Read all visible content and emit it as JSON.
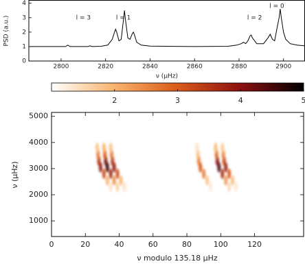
{
  "chart_data": [
    {
      "type": "line",
      "ylabel": "PSD (a.u.)",
      "xlabel": "ν (μHz)",
      "xlim": [
        2785.5,
        2909.5
      ],
      "ylim": [
        0,
        4.2
      ],
      "xticks": [
        2800,
        2820,
        2840,
        2860,
        2880,
        2900
      ],
      "yticks": [
        0,
        1,
        2,
        3,
        4
      ],
      "color": "#000000",
      "x": [
        2786,
        2795,
        2802,
        2803,
        2804,
        2812,
        2813,
        2814,
        2818,
        2821,
        2823,
        2824,
        2824.5,
        2825,
        2826,
        2827,
        2828,
        2828.5,
        2829,
        2830,
        2831,
        2832,
        2832.5,
        2833,
        2834,
        2836,
        2840,
        2860,
        2875,
        2879,
        2881,
        2882,
        2883,
        2884,
        2885,
        2885.5,
        2886,
        2888,
        2891,
        2893,
        2894,
        2895,
        2896,
        2897,
        2898,
        2898.5,
        2899,
        2900,
        2901,
        2903,
        2906,
        2909.5
      ],
      "values": [
        1.0,
        1.0,
        1.0,
        1.1,
        1.0,
        1.0,
        1.05,
        1.0,
        1.02,
        1.1,
        1.5,
        2.0,
        2.2,
        2.0,
        1.4,
        1.5,
        2.8,
        3.5,
        2.8,
        1.6,
        1.5,
        1.9,
        2.0,
        1.8,
        1.3,
        1.1,
        1.03,
        1.0,
        1.02,
        1.1,
        1.2,
        1.3,
        1.2,
        1.4,
        1.75,
        1.8,
        1.6,
        1.2,
        1.2,
        1.6,
        1.85,
        1.5,
        1.4,
        2.2,
        3.0,
        3.6,
        3.0,
        2.0,
        1.5,
        1.2,
        1.1,
        1.05
      ],
      "annotations": [
        {
          "text": "l = 3",
          "x": 2810,
          "y": 3.0
        },
        {
          "text": "l = 1",
          "x": 2828,
          "y": 3.0
        },
        {
          "text": "l = 2",
          "x": 2887,
          "y": 3.0
        },
        {
          "text": "l = 0",
          "x": 2897,
          "y": 3.8
        }
      ]
    },
    {
      "type": "heatmap",
      "xlabel": "ν modulo 135.18 μHz",
      "ylabel": "ν (μHz)",
      "xlim": [
        0,
        149
      ],
      "ylim": [
        400,
        5150
      ],
      "xticks": [
        0,
        20,
        40,
        60,
        80,
        100,
        120
      ],
      "yticks": [
        1000,
        2000,
        3000,
        4000,
        5000
      ],
      "clim": [
        1,
        5
      ],
      "cticks": [
        2,
        3,
        4,
        5
      ],
      "cmap": [
        "#ffffff",
        "#f9b36b",
        "#d95a1a",
        "#8b1010",
        "#000000"
      ],
      "x": [
        35,
        33,
        31,
        29,
        28,
        27.5,
        27,
        39,
        37,
        35,
        33,
        32,
        31.5,
        31,
        43,
        41,
        39,
        37,
        36,
        35.5,
        35,
        94,
        92,
        90,
        88,
        87,
        86.5,
        86,
        105,
        103,
        101,
        99,
        98,
        97.5,
        97,
        109,
        107,
        105,
        103,
        102,
        101.5,
        101
      ],
      "y": [
        2300,
        2550,
        2800,
        3050,
        3300,
        3550,
        3800,
        2300,
        2550,
        2800,
        3050,
        3300,
        3550,
        3800,
        2300,
        2550,
        2800,
        3050,
        3300,
        3550,
        3800,
        2300,
        2550,
        2800,
        3050,
        3300,
        3550,
        3800,
        2300,
        2550,
        2800,
        3050,
        3300,
        3550,
        3800,
        2300,
        2550,
        2800,
        3050,
        3300,
        3550,
        3800
      ],
      "values": [
        1.4,
        2.0,
        3.2,
        3.9,
        3.5,
        2.6,
        1.8,
        1.6,
        2.4,
        3.8,
        4.6,
        4.2,
        3.0,
        2.0,
        1.4,
        2.0,
        3.2,
        3.9,
        3.5,
        2.6,
        1.8,
        1.3,
        1.8,
        2.6,
        3.0,
        2.6,
        1.9,
        1.4,
        1.5,
        2.3,
        3.6,
        4.5,
        4.0,
        2.8,
        1.9,
        1.3,
        1.9,
        3.0,
        3.8,
        3.3,
        2.5,
        1.7
      ]
    }
  ]
}
